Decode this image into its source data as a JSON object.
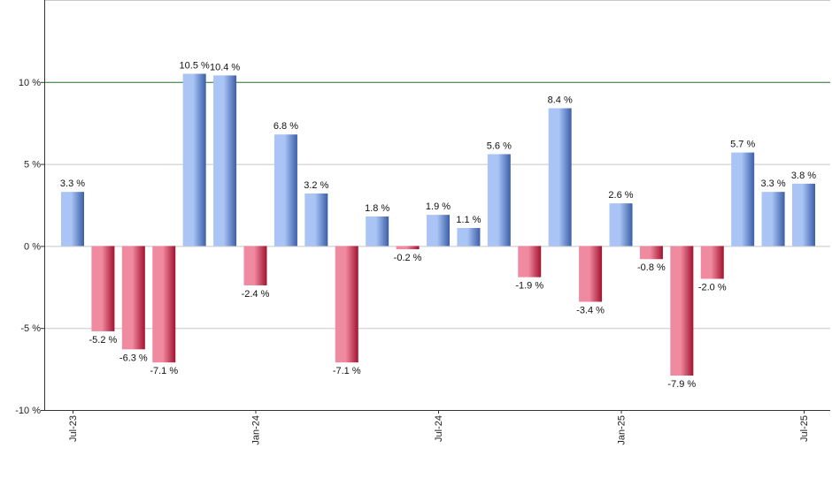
{
  "chart_data": {
    "type": "bar",
    "title": "",
    "xlabel": "",
    "ylabel": "",
    "ylim": [
      -10,
      15
    ],
    "y_ticks": [
      -10,
      -5,
      0,
      5,
      10
    ],
    "y_tick_labels": [
      "-10 %",
      "-5 %",
      "0 %",
      "5 %",
      "10 %"
    ],
    "reference_line": {
      "value": 10,
      "color": "#2e7d32"
    },
    "grid": true,
    "legend": "none",
    "categories": [
      "Jul-23",
      "Aug-23",
      "Sep-23",
      "Oct-23",
      "Nov-23",
      "Dec-23",
      "Jan-24",
      "Feb-24",
      "Mar-24",
      "Apr-24",
      "May-24",
      "Jun-24",
      "Jul-24",
      "Aug-24",
      "Sep-24",
      "Oct-24",
      "Nov-24",
      "Dec-24",
      "Jan-25",
      "Feb-25",
      "Mar-25",
      "Apr-25",
      "May-25",
      "Jun-25",
      "Jul-25"
    ],
    "values": [
      3.3,
      -5.2,
      -6.3,
      -7.1,
      10.5,
      10.4,
      -2.4,
      6.8,
      3.2,
      -7.1,
      1.8,
      -0.2,
      1.9,
      1.1,
      5.6,
      -1.9,
      8.4,
      -3.4,
      2.6,
      -0.8,
      -7.9,
      -2.0,
      5.7,
      3.3,
      3.8
    ],
    "value_labels": [
      "3.3 %",
      "-5.2 %",
      "-6.3 %",
      "-7.1 %",
      "10.5 %",
      "10.4 %",
      "-2.4 %",
      "6.8 %",
      "3.2 %",
      "-7.1 %",
      "1.8 %",
      "-0.2 %",
      "1.9 %",
      "1.1 %",
      "5.6 %",
      "-1.9 %",
      "8.4 %",
      "-3.4 %",
      "2.6 %",
      "-0.8 %",
      "-7.9 %",
      "-2.0 %",
      "5.7 %",
      "3.3 %",
      "3.8 %"
    ],
    "x_tick_labels": [
      {
        "index": 0,
        "label": "Jul-23"
      },
      {
        "index": 6,
        "label": "Jan-24"
      },
      {
        "index": 12,
        "label": "Jul-24"
      },
      {
        "index": 18,
        "label": "Jan-25"
      },
      {
        "index": 24,
        "label": "Jul-25"
      }
    ],
    "colors": {
      "positive_light": "#a9c4f5",
      "positive_dark": "#3b5ea8",
      "negative_light": "#f08aa0",
      "negative_dark": "#a3122f",
      "grid": "#c8c8c8",
      "axis": "#333333"
    }
  }
}
